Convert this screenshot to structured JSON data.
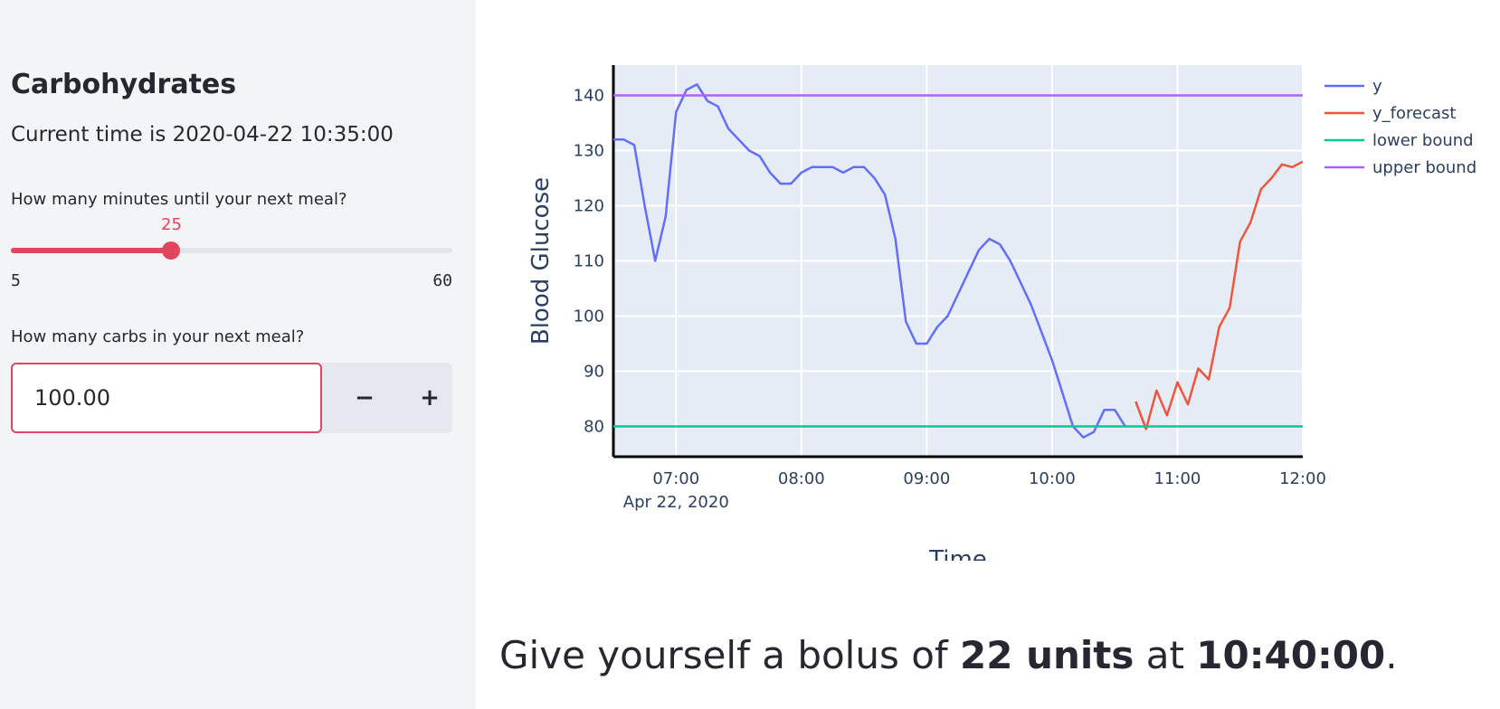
{
  "sidebar": {
    "title": "Carbohydrates",
    "current_time": "Current time is 2020-04-22 10:35:00",
    "minutes_label": "How many minutes until your next meal?",
    "slider": {
      "value": 25,
      "min": 5,
      "max": 60,
      "min_label": "5",
      "max_label": "60",
      "value_label": "25",
      "color": "#e0475d"
    },
    "carbs_label": "How many carbs in your next meal?",
    "carbs_value": "100.00",
    "minus_label": "−",
    "plus_label": "+"
  },
  "result": {
    "prefix": "Give yourself a bolus of ",
    "units": "22 units",
    "middle": " at ",
    "time": "10:40:00",
    "suffix": "."
  },
  "chart_data": {
    "type": "line",
    "xlabel": "Time",
    "ylabel": "Blood Glucose",
    "x_start_label": "Apr 22, 2020",
    "x_ticks": [
      "07:00",
      "08:00",
      "09:00",
      "10:00",
      "11:00",
      "12:00"
    ],
    "y_ticks": [
      80,
      90,
      100,
      110,
      120,
      130,
      140
    ],
    "xlim": [
      "06:30",
      "12:00"
    ],
    "ylim": [
      74.5,
      145.5
    ],
    "grid": true,
    "legend_placement": "top-right",
    "series": [
      {
        "name": "y",
        "color": "#636efa",
        "x": [
          "06:30",
          "06:35",
          "06:40",
          "06:45",
          "06:50",
          "06:55",
          "07:00",
          "07:05",
          "07:10",
          "07:15",
          "07:20",
          "07:25",
          "07:30",
          "07:35",
          "07:40",
          "07:45",
          "07:50",
          "07:55",
          "08:00",
          "08:05",
          "08:10",
          "08:15",
          "08:20",
          "08:25",
          "08:30",
          "08:35",
          "08:40",
          "08:45",
          "08:50",
          "08:55",
          "09:00",
          "09:05",
          "09:10",
          "09:15",
          "09:20",
          "09:25",
          "09:30",
          "09:35",
          "09:40",
          "09:45",
          "09:50",
          "09:55",
          "10:00",
          "10:05",
          "10:10",
          "10:15",
          "10:20",
          "10:25",
          "10:30",
          "10:35"
        ],
        "y": [
          132,
          132,
          131,
          120,
          110,
          118,
          137,
          141,
          142,
          139,
          138,
          134,
          132,
          130,
          129,
          126,
          124,
          124,
          126,
          127,
          127,
          127,
          126,
          127,
          127,
          125,
          122,
          114,
          99,
          95,
          95,
          98,
          100,
          104,
          108,
          112,
          114,
          113,
          110,
          106,
          102,
          97,
          92,
          86,
          80,
          78,
          79,
          83,
          83,
          80
        ]
      },
      {
        "name": "y_forecast",
        "color": "#ef553b",
        "x": [
          "10:40",
          "10:45",
          "10:50",
          "10:55",
          "11:00",
          "11:05",
          "11:10",
          "11:15",
          "11:20",
          "11:25",
          "11:30",
          "11:35",
          "11:40",
          "11:45",
          "11:50",
          "11:55",
          "12:00"
        ],
        "y": [
          84.5,
          79.5,
          86.5,
          82,
          88,
          84,
          90.5,
          88.5,
          98,
          101.5,
          113.5,
          117,
          123,
          125,
          127.5,
          127,
          128
        ]
      },
      {
        "name": "lower bound",
        "color": "#00cc96",
        "x": [
          "06:30",
          "12:00"
        ],
        "y": [
          80,
          80
        ]
      },
      {
        "name": "upper bound",
        "color": "#ab63fa",
        "x": [
          "06:30",
          "12:00"
        ],
        "y": [
          140,
          140
        ]
      }
    ]
  }
}
